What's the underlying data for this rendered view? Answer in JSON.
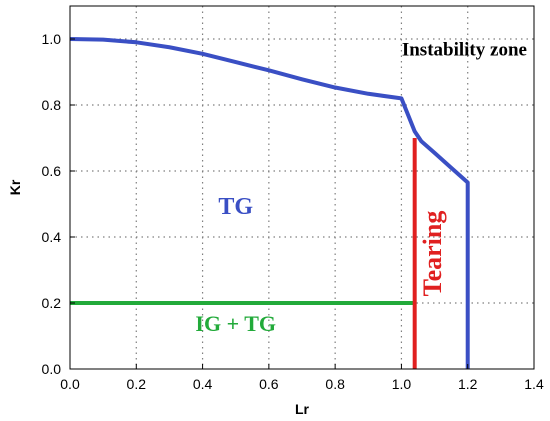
{
  "chart_data": {
    "type": "line",
    "xlabel": "Lr",
    "ylabel": "Kr",
    "xlim": [
      0.0,
      1.4
    ],
    "ylim": [
      0.0,
      1.1
    ],
    "x_ticks": [
      "0.0",
      "0.2",
      "0.4",
      "0.6",
      "0.8",
      "1.0",
      "1.2",
      "1.4"
    ],
    "y_ticks": [
      "0.0",
      "0.2",
      "0.4",
      "0.6",
      "0.8",
      "1.0"
    ],
    "x_tick_values": [
      0.0,
      0.2,
      0.4,
      0.6,
      0.8,
      1.0,
      1.2,
      1.4
    ],
    "y_tick_values": [
      0.0,
      0.2,
      0.4,
      0.6,
      0.8,
      1.0
    ],
    "grid": true,
    "series": [
      {
        "color": "#3a4fc4",
        "points": [
          [
            0.0,
            1.0
          ],
          [
            0.1,
            0.998
          ],
          [
            0.2,
            0.99
          ],
          [
            0.3,
            0.975
          ],
          [
            0.4,
            0.955
          ],
          [
            0.5,
            0.93
          ],
          [
            0.6,
            0.905
          ],
          [
            0.7,
            0.878
          ],
          [
            0.8,
            0.853
          ],
          [
            0.9,
            0.834
          ],
          [
            1.0,
            0.82
          ],
          [
            1.02,
            0.77
          ],
          [
            1.04,
            0.72
          ],
          [
            1.06,
            0.69
          ],
          [
            1.1,
            0.655
          ],
          [
            1.15,
            0.61
          ],
          [
            1.2,
            0.565
          ],
          [
            1.2,
            0.0
          ]
        ]
      },
      {
        "color": "#22aa3a",
        "points": [
          [
            0.0,
            0.2
          ],
          [
            1.04,
            0.2
          ]
        ]
      },
      {
        "color": "#e02020",
        "points": [
          [
            1.04,
            0.0
          ],
          [
            1.04,
            0.7
          ]
        ]
      }
    ],
    "annotations": [
      {
        "text": "Instability zone",
        "x": 1.19,
        "y": 0.95,
        "color": "#000000",
        "size": 19,
        "anchor": "middle"
      },
      {
        "text": "TG",
        "x": 0.5,
        "y": 0.47,
        "color": "#3a4fc4",
        "size": 24,
        "anchor": "middle"
      },
      {
        "text": "IG + TG",
        "x": 0.5,
        "y": 0.115,
        "color": "#22aa3a",
        "size": 22,
        "anchor": "middle"
      },
      {
        "text": "Tearing",
        "x": 1.12,
        "y": 0.35,
        "color": "#e02020",
        "size": 26,
        "anchor": "middle",
        "rotate": -90
      }
    ]
  }
}
